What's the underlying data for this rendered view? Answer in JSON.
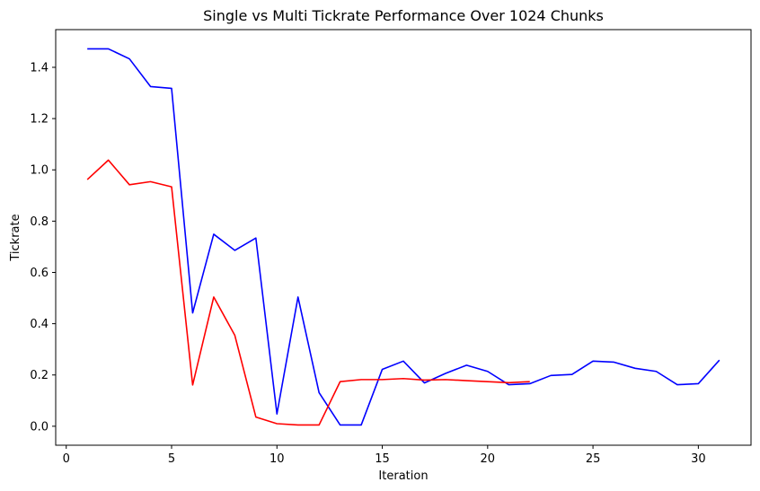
{
  "chart_data": {
    "type": "line",
    "title": "Single vs Multi Tickrate Performance Over 1024 Chunks",
    "xlabel": "Iteration",
    "ylabel": "Tickrate",
    "xlim": [
      -0.5,
      32.5
    ],
    "ylim": [
      -0.074,
      1.547
    ],
    "xticks": [
      0,
      5,
      10,
      15,
      20,
      25,
      30
    ],
    "yticks": [
      0.0,
      0.2,
      0.4,
      0.6,
      0.8,
      1.0,
      1.2,
      1.4
    ],
    "xtick_labels": [
      "0",
      "5",
      "10",
      "15",
      "20",
      "25",
      "30"
    ],
    "ytick_labels": [
      "0.0",
      "0.2",
      "0.4",
      "0.6",
      "0.8",
      "1.0",
      "1.2",
      "1.4"
    ],
    "grid": false,
    "series": [
      {
        "color": "#0000ff",
        "x": [
          1,
          2,
          3,
          4,
          5,
          6,
          7,
          8,
          9,
          10,
          11,
          12,
          13,
          14,
          15,
          16,
          17,
          18,
          19,
          20,
          21,
          22,
          23,
          24,
          25,
          26,
          27,
          28,
          29,
          30,
          31
        ],
        "y": [
          1.472,
          1.472,
          1.433,
          1.325,
          1.318,
          0.442,
          0.749,
          0.686,
          0.734,
          0.048,
          0.504,
          0.131,
          0.005,
          0.005,
          0.222,
          0.254,
          0.169,
          0.206,
          0.238,
          0.214,
          0.162,
          0.166,
          0.198,
          0.202,
          0.254,
          0.25,
          0.226,
          0.214,
          0.162,
          0.166,
          0.258
        ]
      },
      {
        "color": "#ff0000",
        "x": [
          1,
          2,
          3,
          4,
          5,
          6,
          7,
          8,
          9,
          10,
          11,
          12,
          13,
          14,
          15,
          16,
          17,
          18,
          19,
          20,
          21,
          22
        ],
        "y": [
          0.962,
          1.038,
          0.942,
          0.954,
          0.934,
          0.161,
          0.504,
          0.355,
          0.036,
          0.01,
          0.005,
          0.005,
          0.174,
          0.182,
          0.182,
          0.186,
          0.18,
          0.182,
          0.178,
          0.174,
          0.17,
          0.174
        ]
      }
    ]
  }
}
